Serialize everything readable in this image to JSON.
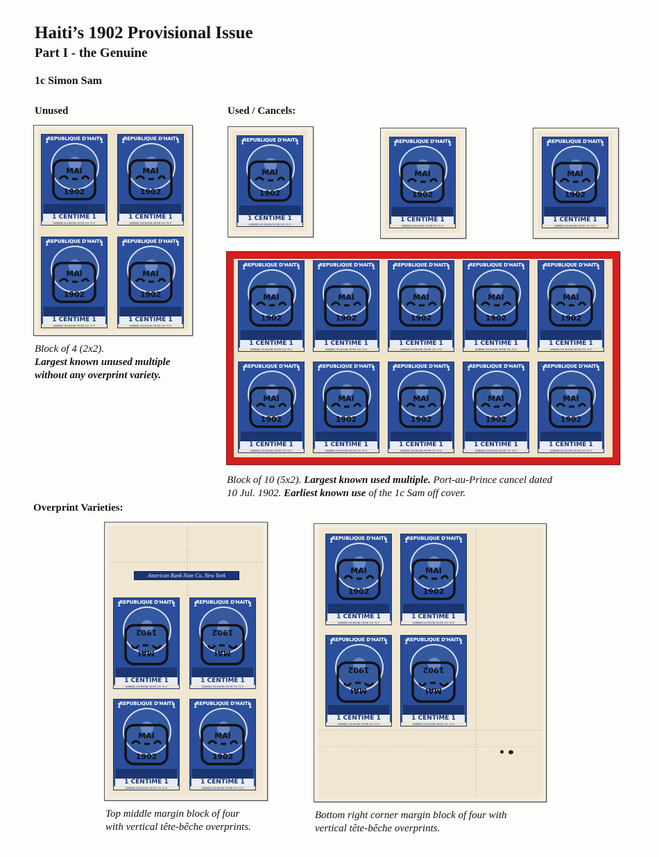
{
  "page": {
    "title": "Haiti’s 1902 Provisional Issue",
    "subtitle": "Part I - the Genuine",
    "stamp_name": "1c Simon Sam"
  },
  "sections": {
    "unused": "Unused",
    "used": "Used / Cancels:",
    "varieties": "Overprint Varieties:"
  },
  "stamp_text": {
    "country": "REPUBLIQUE D'HAITI",
    "denomination": "1",
    "value_label": "CENTIME",
    "imprint": "AMERICAN BANK NOTE CO. N.Y.",
    "overprint_month": "MAI",
    "overprint_year": "1902",
    "margin_imprint": "American Bank Note Co. New York"
  },
  "captions": {
    "block4": {
      "line1": "Block of 4 (2x2).",
      "line2": "Largest known unused multiple",
      "line3": "without any overprint variety."
    },
    "block10": {
      "part1": "Block of 10 (5x2).",
      "bold1": "Largest known used multiple.",
      "part2": "Port-au-Prince cancel dated",
      "part3": "10 Jul. 1902.",
      "bold2": "Earliest known use",
      "part4": "of the 1c Sam off cover."
    },
    "top_margin": {
      "line1": "Top middle margin block of four",
      "line2": "with vertical tête-bêche overprints."
    },
    "corner_margin": {
      "line1": "Bottom right corner margin block of four with",
      "line2": "vertical tête-bêche overprints."
    }
  },
  "colors": {
    "stamp_blue": "#2a4e9c",
    "mount_red": "#d41f1f",
    "paper": "#efe4cc"
  }
}
